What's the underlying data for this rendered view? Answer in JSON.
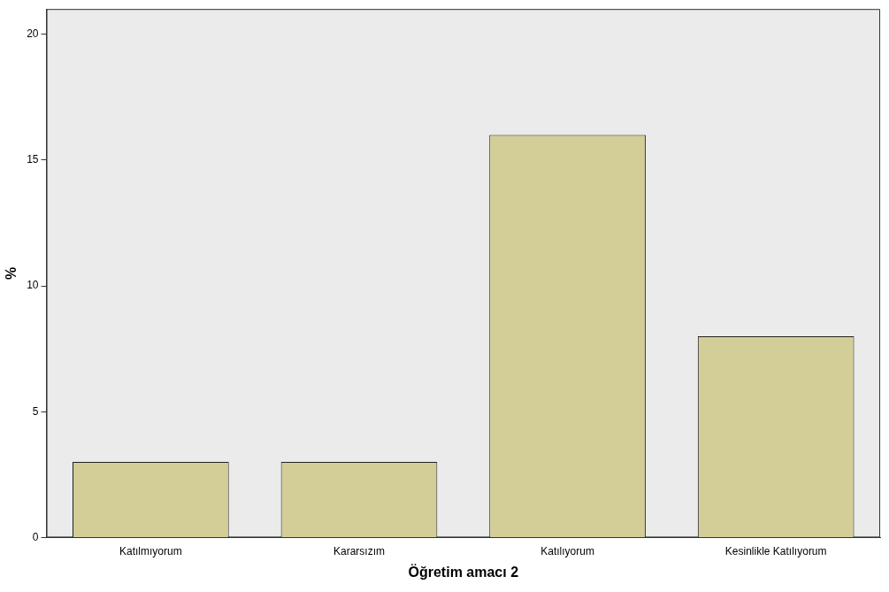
{
  "chart_data": {
    "type": "bar",
    "xlabel": "Öğretim amacı 2",
    "ylabel": "%",
    "categories": [
      "Katılmıyorum",
      "Kararsızım",
      "Katılıyorum",
      "Kesinlikle Katılıyorum"
    ],
    "values": [
      3,
      3,
      16,
      8
    ],
    "color": "#d3ce97",
    "ylim": [
      0,
      21
    ],
    "yticks": [
      0,
      5,
      10,
      15,
      20
    ],
    "grid": false
  }
}
